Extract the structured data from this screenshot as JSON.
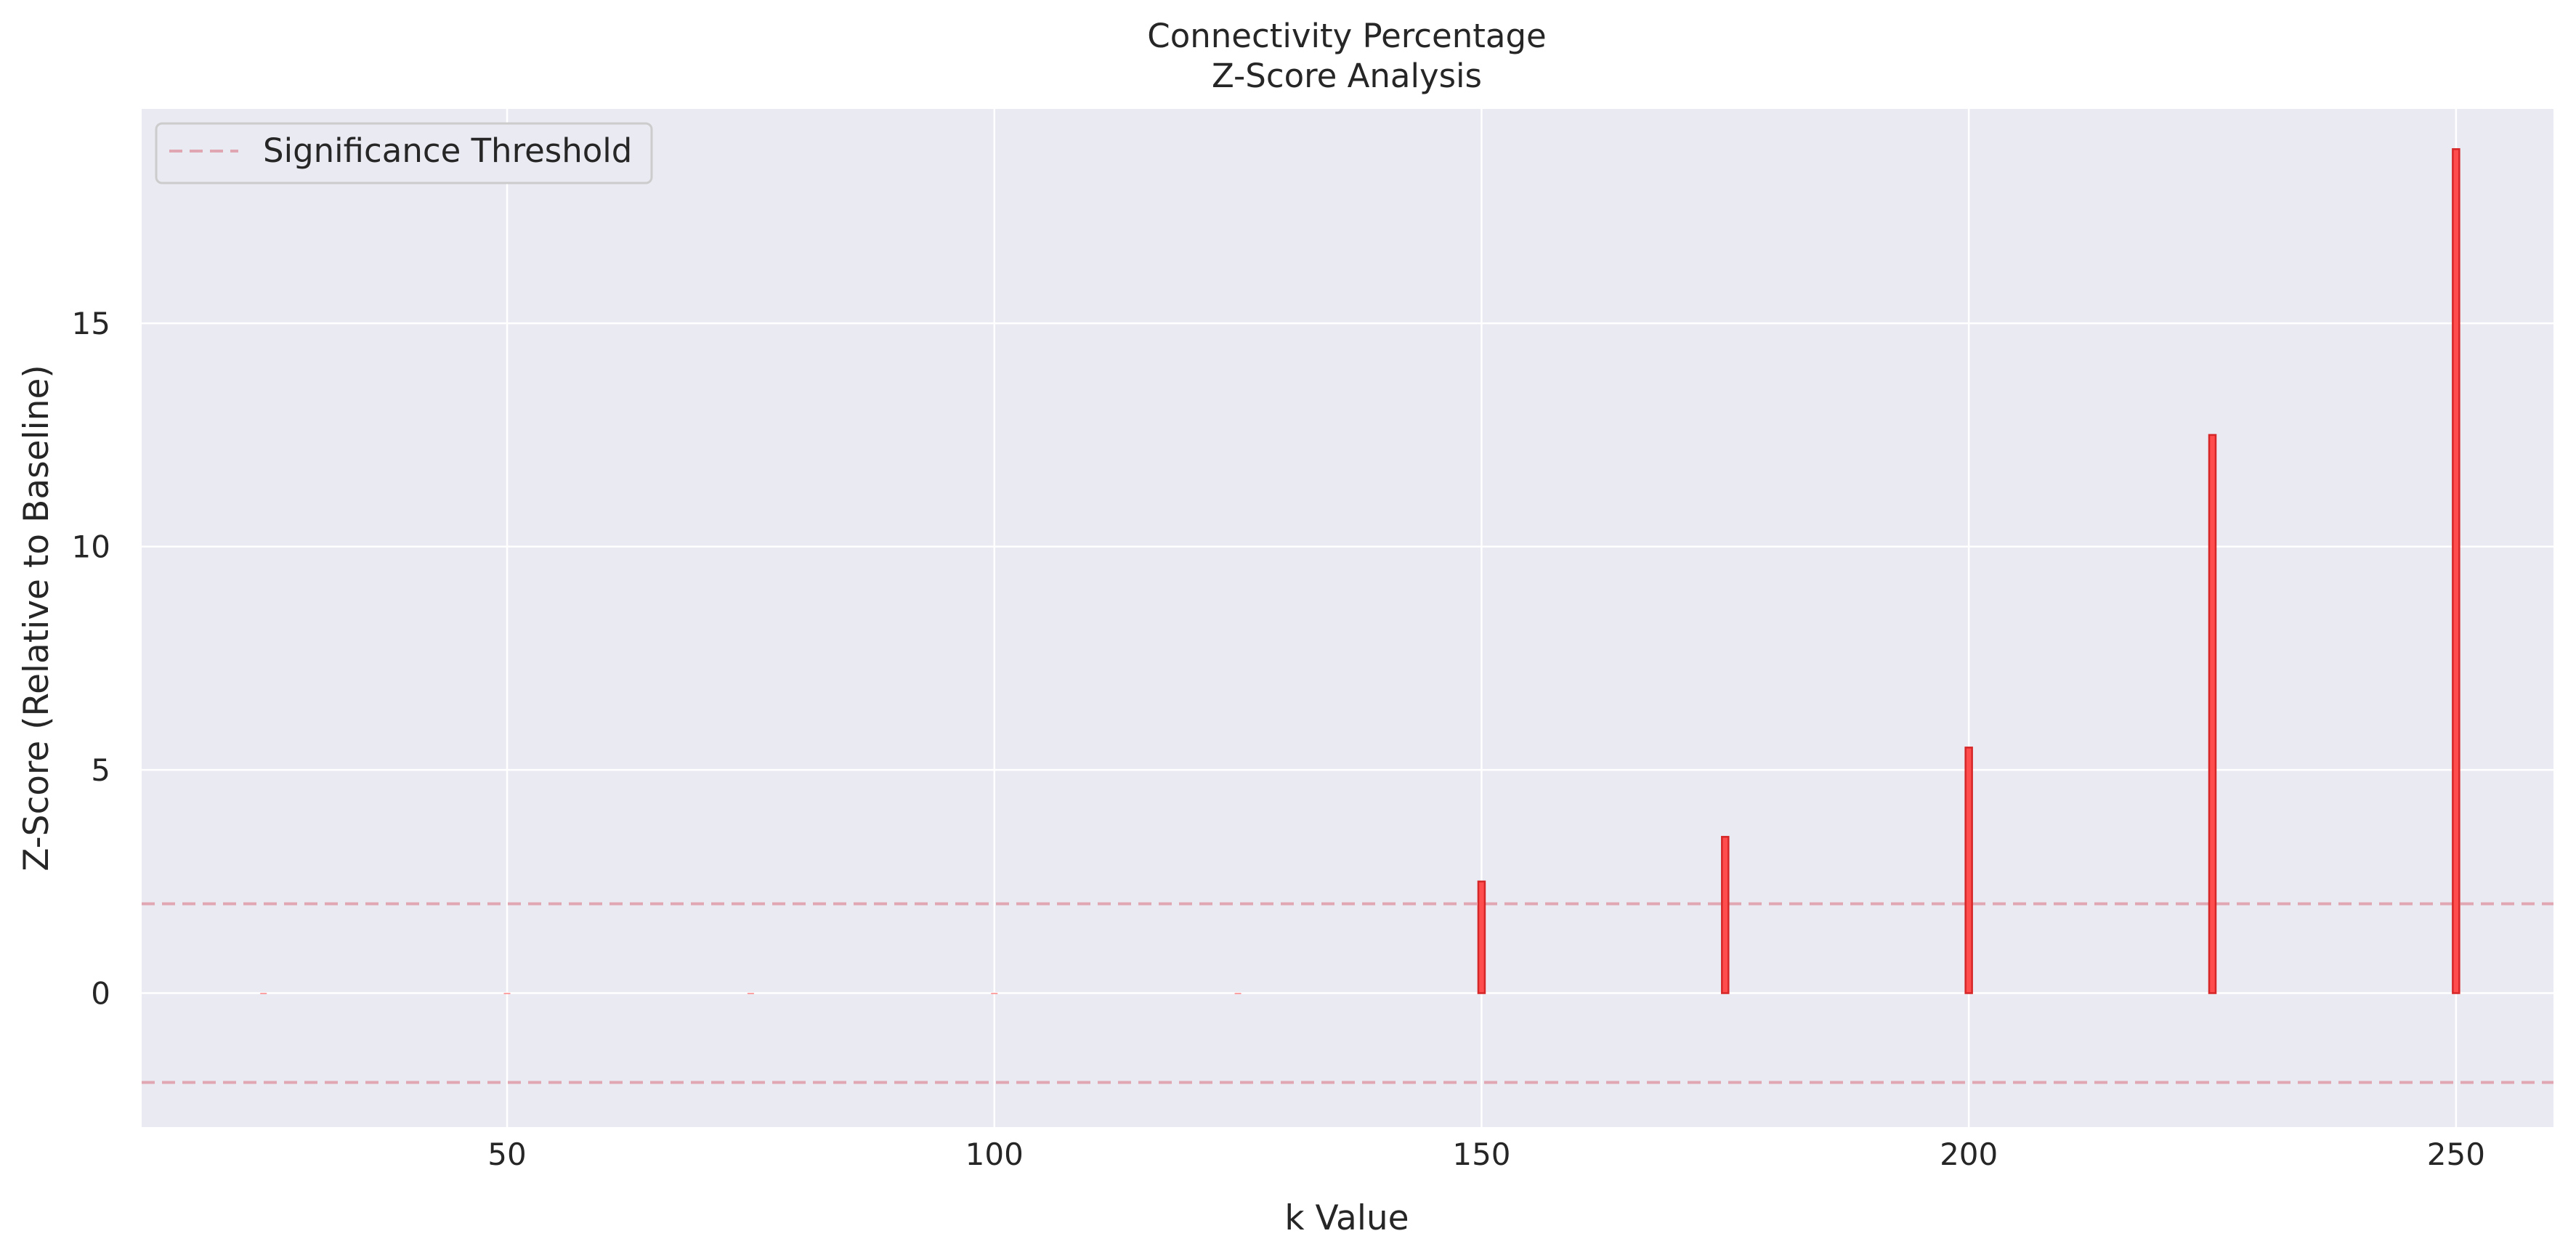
{
  "chart_data": {
    "type": "bar",
    "title_lines": [
      "Connectivity Percentage",
      "Z-Score Analysis"
    ],
    "xlabel": "k Value",
    "ylabel": "Z-Score (Relative to Baseline)",
    "x": [
      25,
      50,
      75,
      100,
      125,
      150,
      175,
      200,
      225,
      250
    ],
    "values": [
      0,
      0,
      0,
      0,
      0,
      2.5,
      3.5,
      5.5,
      12.5,
      18.9
    ],
    "xlim": [
      12.5,
      260
    ],
    "ylim": [
      -3,
      19.8
    ],
    "xticks": [
      50,
      100,
      150,
      200,
      250
    ],
    "yticks": [
      0,
      5,
      10,
      15
    ],
    "thresholds": [
      2,
      -2
    ],
    "legend": {
      "label": "Significance Threshold",
      "position": "upper-left"
    },
    "grid": true,
    "colors": {
      "bar_fill": "#ff4c4c",
      "bar_edge": "#d62728",
      "threshold": "#e0a6b2",
      "plot_bg": "#eaeaf2",
      "grid": "#ffffff"
    }
  }
}
